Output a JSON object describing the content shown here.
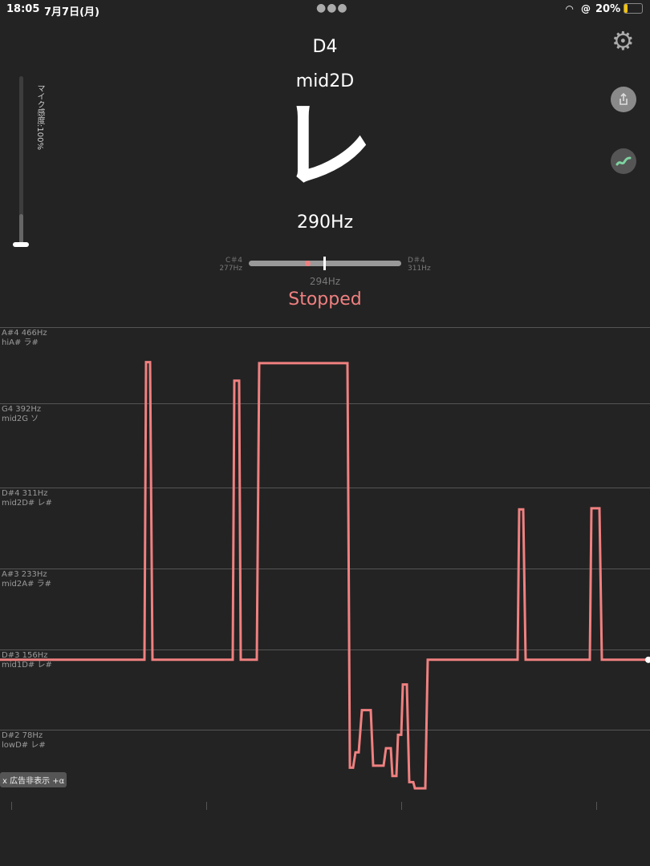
{
  "status_bar": {
    "time": "18:05",
    "date": "7月7日(月)",
    "battery": "20%",
    "battery_level_percent": 20,
    "icons": [
      "wifi-icon",
      "orientation-lock-icon",
      "battery-icon"
    ]
  },
  "tuner": {
    "note": "D4",
    "octave_name": "mid2D",
    "kana": "レ",
    "frequency": "290Hz",
    "state": "Stopped"
  },
  "mic": {
    "label": "マイク感度:100%",
    "sensitivity_percent": 100
  },
  "meter": {
    "left_note": "C＃4",
    "left_hz": "277Hz",
    "right_note": "D＃4",
    "right_hz": "311Hz",
    "center_hz": "294Hz",
    "detected_hz": 290
  },
  "buttons": {
    "settings": "gear-icon",
    "share": "share-icon",
    "graph": "wave-icon"
  },
  "ad_button": "x 広告非表示 +α",
  "colors": {
    "accent": "#f08080",
    "background": "#232323",
    "graph_button": "#7ed3a0"
  },
  "chart_data": {
    "type": "line",
    "gridlines": [
      {
        "note": "A#4",
        "hz": 466,
        "name": "hiA# ラ#"
      },
      {
        "note": "G4",
        "hz": 392,
        "name": "mid2G ソ"
      },
      {
        "note": "D#4",
        "hz": 311,
        "name": "mid2D# レ#"
      },
      {
        "note": "A#3",
        "hz": 233,
        "name": "mid2A# ラ#"
      },
      {
        "note": "D#3",
        "hz": 156,
        "name": "mid1D# レ#"
      },
      {
        "note": "D#2",
        "hz": 78,
        "name": "lowD# レ#"
      }
    ],
    "points": [
      [
        0,
        146
      ],
      [
        180,
        146
      ],
      [
        182,
        432
      ],
      [
        187,
        432
      ],
      [
        190,
        146
      ],
      [
        290,
        146
      ],
      [
        292,
        414
      ],
      [
        298,
        414
      ],
      [
        300,
        146
      ],
      [
        320,
        146
      ],
      [
        323,
        431
      ],
      [
        433,
        431
      ],
      [
        436,
        41
      ],
      [
        440,
        41
      ],
      [
        443,
        56
      ],
      [
        447,
        56
      ],
      [
        451,
        97
      ],
      [
        462,
        97
      ],
      [
        465,
        43
      ],
      [
        478,
        43
      ],
      [
        481,
        60
      ],
      [
        487,
        60
      ],
      [
        489,
        33
      ],
      [
        494,
        33
      ],
      [
        496,
        73
      ],
      [
        500,
        73
      ],
      [
        502,
        122
      ],
      [
        507,
        122
      ],
      [
        510,
        27
      ],
      [
        515,
        27
      ],
      [
        517,
        21
      ],
      [
        530,
        21
      ],
      [
        533,
        146
      ],
      [
        645,
        146
      ],
      [
        647,
        290
      ],
      [
        652,
        290
      ],
      [
        655,
        146
      ],
      [
        735,
        146
      ],
      [
        737,
        291
      ],
      [
        747,
        291
      ],
      [
        750,
        146
      ],
      [
        808,
        146
      ]
    ],
    "line_color": "#f08080"
  }
}
